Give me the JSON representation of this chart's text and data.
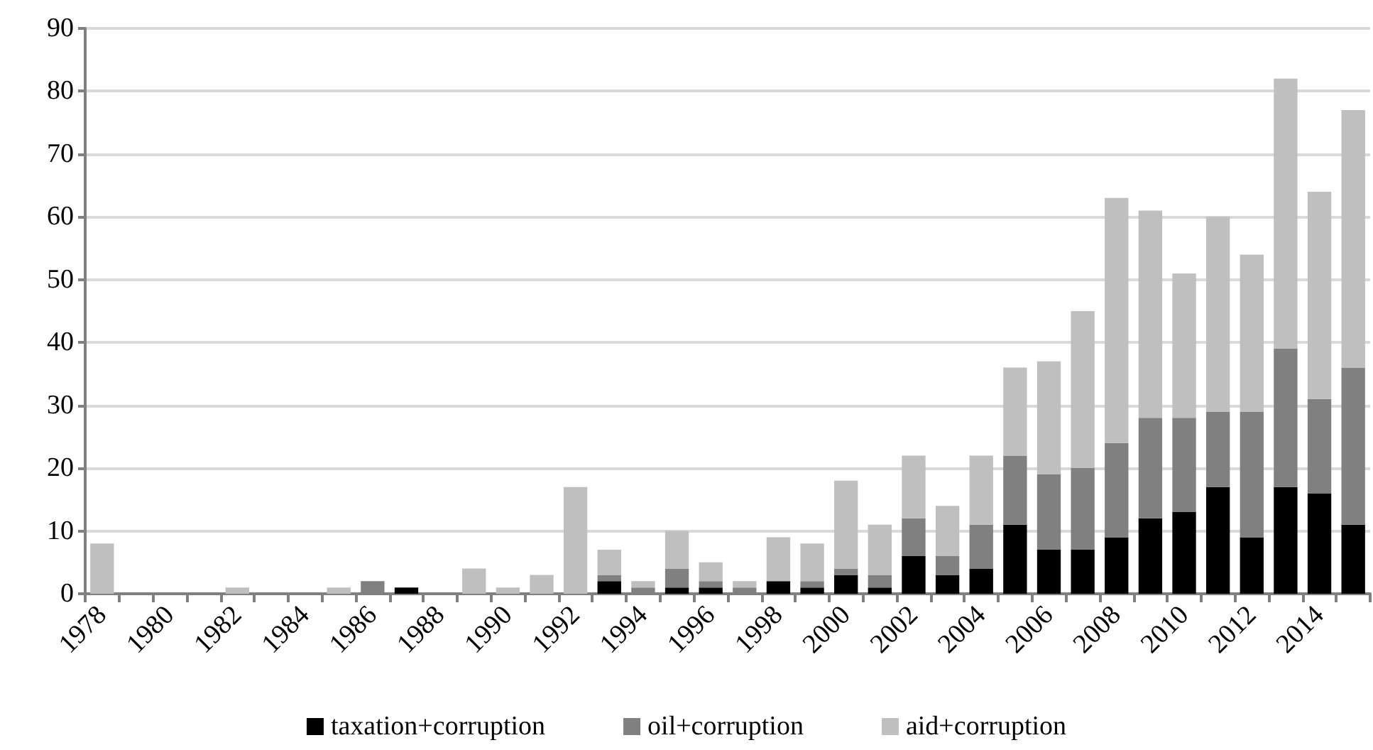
{
  "chart_data": {
    "type": "bar",
    "stacked": true,
    "categories": [
      "1978",
      null,
      "1980",
      null,
      "1982",
      null,
      "1984",
      null,
      "1986",
      null,
      "1988",
      null,
      "1990",
      null,
      "1992",
      null,
      "1994",
      null,
      "1996",
      null,
      "1998",
      null,
      "2000",
      null,
      "2002",
      null,
      "2004",
      null,
      "2006",
      null,
      "2008",
      null,
      "2010",
      null,
      "2012",
      null,
      "2014",
      null
    ],
    "series": [
      {
        "name": "taxation+corruption",
        "color": "#000000",
        "values": [
          0,
          0,
          0,
          0,
          0,
          0,
          0,
          0,
          0,
          1,
          0,
          0,
          0,
          0,
          0,
          2,
          0,
          1,
          1,
          0,
          2,
          1,
          3,
          1,
          6,
          3,
          4,
          11,
          7,
          7,
          9,
          12,
          13,
          17,
          9,
          17,
          16,
          11
        ]
      },
      {
        "name": "oil+corruption",
        "color": "#808080",
        "values": [
          0,
          0,
          0,
          0,
          0,
          0,
          0,
          0,
          2,
          0,
          0,
          0,
          0,
          0,
          0,
          1,
          1,
          3,
          1,
          1,
          0,
          1,
          1,
          2,
          6,
          3,
          7,
          11,
          12,
          13,
          15,
          16,
          15,
          12,
          20,
          22,
          15,
          25
        ]
      },
      {
        "name": "aid+corruption",
        "color": "#bfbfbf",
        "values": [
          8,
          0,
          0,
          0,
          1,
          0,
          0,
          1,
          0,
          0,
          0,
          4,
          1,
          3,
          17,
          4,
          1,
          6,
          3,
          1,
          7,
          6,
          14,
          8,
          10,
          8,
          11,
          14,
          18,
          25,
          39,
          33,
          23,
          31,
          25,
          43,
          33,
          41
        ]
      }
    ],
    "ylim": [
      0,
      90
    ],
    "yticks": [
      0,
      10,
      20,
      30,
      40,
      50,
      60,
      70,
      80,
      90
    ],
    "grid": "y",
    "legend": "bottom"
  }
}
